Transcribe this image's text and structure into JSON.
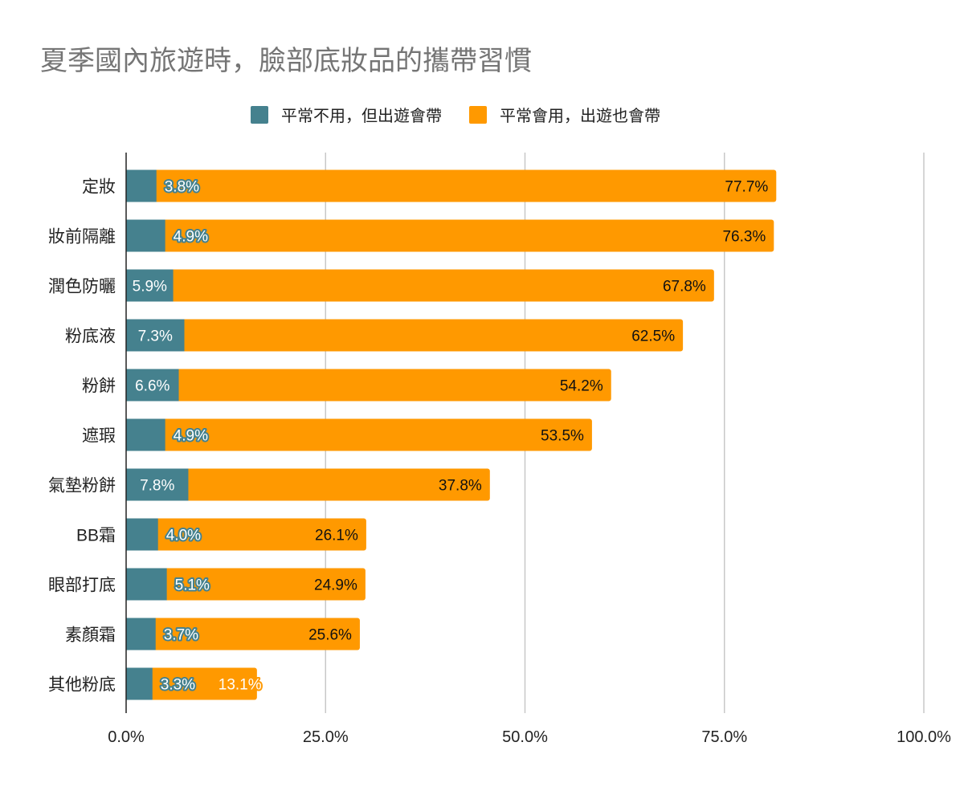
{
  "chart_data": {
    "type": "bar",
    "orientation": "horizontal",
    "stacked": true,
    "title": "夏季國內旅遊時，臉部底妝品的攜帶習慣",
    "categories": [
      "定妝",
      "妝前隔離",
      "潤色防曬",
      "粉底液",
      "粉餅",
      "遮瑕",
      "氣墊粉餅",
      "BB霜",
      "眼部打底",
      "素顏霜",
      "其他粉底"
    ],
    "series": [
      {
        "name": "平常不用，但出遊會帶",
        "color": "#45818e",
        "values": [
          3.8,
          4.9,
          5.9,
          7.3,
          6.6,
          4.9,
          7.8,
          4.0,
          5.1,
          3.7,
          3.3
        ],
        "labels": [
          "3.8%",
          "4.9%",
          "5.9%",
          "7.3%",
          "6.6%",
          "4.9%",
          "7.8%",
          "4.0%",
          "5.1%",
          "3.7%",
          "3.3%"
        ]
      },
      {
        "name": "平常會用，出遊也會帶",
        "color": "#ff9900",
        "values": [
          77.7,
          76.3,
          67.8,
          62.5,
          54.2,
          53.5,
          37.8,
          26.1,
          24.9,
          25.6,
          13.1
        ],
        "labels": [
          "77.7%",
          "76.3%",
          "67.8%",
          "62.5%",
          "54.2%",
          "53.5%",
          "37.8%",
          "26.1%",
          "24.9%",
          "25.6%",
          "13.1%"
        ]
      }
    ],
    "xlim": [
      0,
      100
    ],
    "x_ticks": [
      0,
      25,
      50,
      75,
      100
    ],
    "x_tick_labels": [
      "0.0%",
      "25.0%",
      "50.0%",
      "75.0%",
      "100.0%"
    ],
    "legend_position": "top",
    "grid": true
  }
}
